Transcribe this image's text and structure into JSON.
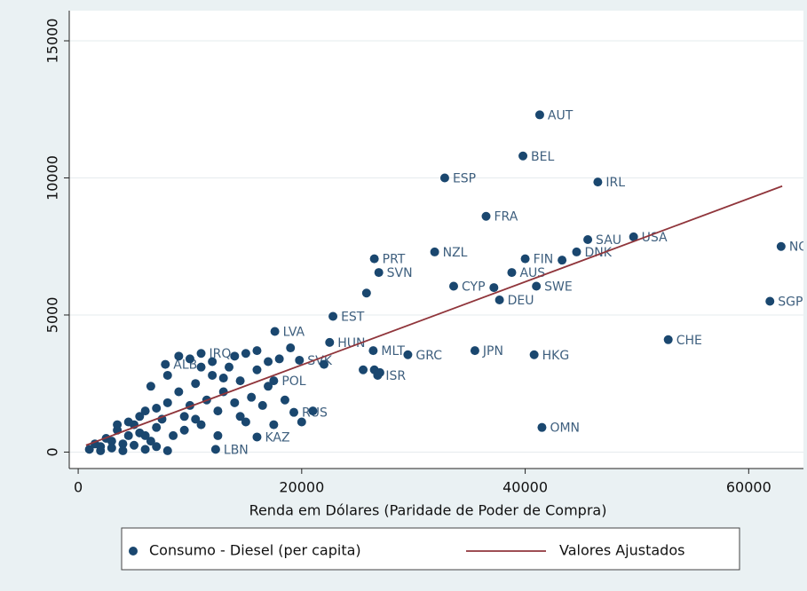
{
  "chart_data": {
    "type": "scatter",
    "x_label": "Renda em Dólares (Paridade de Poder de Compra)",
    "xlim": [
      -800,
      64900
    ],
    "ylim": [
      -600,
      16100
    ],
    "xticks": [
      0,
      20000,
      40000,
      60000
    ],
    "yticks": [
      0,
      5000,
      10000,
      15000
    ],
    "grid": true,
    "legend": "bottom",
    "series": [
      {
        "name": "Consumo - Diesel  (per capita)",
        "color": "#1a476f",
        "type": "scatter",
        "x": [
          41300,
          39800,
          32800,
          46500,
          36500,
          31900,
          26500,
          26900,
          49700,
          45600,
          44600,
          62900,
          61900,
          52800,
          41500,
          40800,
          35500,
          29500,
          26400,
          26800,
          33600,
          37700,
          41000,
          38800,
          40000,
          22800,
          17600,
          22500,
          19800,
          17500,
          19300,
          16000,
          12300,
          7800,
          11000,
          1000,
          1500,
          2000,
          2500,
          3000,
          3500,
          4000,
          4500,
          5000,
          5500,
          6000,
          6500,
          7000,
          7500,
          8000,
          8500,
          9000,
          9500,
          10000,
          10500,
          11000,
          11500,
          12000,
          12500,
          13000,
          13500,
          14000,
          14500,
          15000,
          15500,
          16000,
          16500,
          17000,
          18000,
          18500,
          19000,
          2000,
          3000,
          4000,
          5000,
          6000,
          7000,
          8000,
          3500,
          4500,
          5500,
          6500,
          7000,
          8000,
          9000,
          10000,
          11000,
          12000,
          13000,
          14000,
          15000,
          16000,
          17000,
          20000,
          21000,
          22000,
          25500,
          26500,
          27000,
          6000,
          9500,
          10500,
          12500,
          14500,
          17500,
          25800,
          43300,
          37200
        ],
        "values": [
          12300,
          10800,
          10000,
          9850,
          8600,
          7300,
          7050,
          6550,
          7850,
          7750,
          7300,
          7500,
          5500,
          4100,
          900,
          3550,
          3700,
          3550,
          3700,
          2800,
          6050,
          5550,
          6050,
          6550,
          7050,
          4950,
          4400,
          4000,
          3350,
          2600,
          1450,
          550,
          100,
          3200,
          3600,
          100,
          300,
          200,
          500,
          400,
          800,
          300,
          600,
          1000,
          700,
          1500,
          400,
          900,
          1200,
          1800,
          600,
          2200,
          1300,
          1700,
          2500,
          1000,
          1900,
          2800,
          1500,
          2200,
          3100,
          1800,
          2600,
          1100,
          2000,
          3000,
          1700,
          2400,
          3400,
          1900,
          3800,
          50,
          150,
          50,
          250,
          100,
          200,
          50,
          1000,
          1100,
          1300,
          2400,
          1600,
          2800,
          3500,
          3400,
          3100,
          3300,
          2700,
          3500,
          3600,
          3700,
          3300,
          1100,
          1500,
          3200,
          3000,
          3000,
          2900,
          600,
          800,
          1200,
          600,
          1300,
          1000,
          5800,
          7000,
          6000
        ],
        "labels": [
          "AUT",
          "BEL",
          "ESP",
          "IRL",
          "FRA",
          "NZL",
          "PRT",
          "SVN",
          "USA",
          "SAU",
          "DNK",
          "NOR",
          "SGP",
          "CHE",
          "OMN",
          "HKG",
          "JPN",
          "GRC",
          "MLT",
          "ISR",
          "CYP",
          "DEU",
          "SWE",
          "AUS",
          "FIN",
          "EST",
          "LVA",
          "HUN",
          "SVK",
          "POL",
          "RUS",
          "KAZ",
          "LBN",
          "ALB",
          "IRQ",
          null,
          null,
          null,
          null,
          null,
          null,
          null,
          null,
          null,
          null,
          null,
          null,
          null,
          null,
          null,
          null,
          null,
          null,
          null,
          null,
          null,
          null,
          null,
          null,
          null,
          null,
          null,
          null,
          null,
          null,
          null,
          null,
          null,
          null,
          null,
          null,
          null,
          null,
          null,
          null,
          null,
          null,
          null,
          null,
          null,
          null,
          null,
          null,
          null,
          null,
          null,
          null,
          null,
          null,
          null,
          null,
          null,
          null,
          null,
          null,
          null,
          null,
          null,
          null,
          null,
          null,
          null,
          null,
          null,
          null,
          null,
          null,
          null
        ]
      },
      {
        "name": "Valores Ajustados",
        "color": "#90353b",
        "type": "line",
        "x": [
          700,
          63000
        ],
        "values": [
          250,
          9700
        ]
      }
    ]
  }
}
